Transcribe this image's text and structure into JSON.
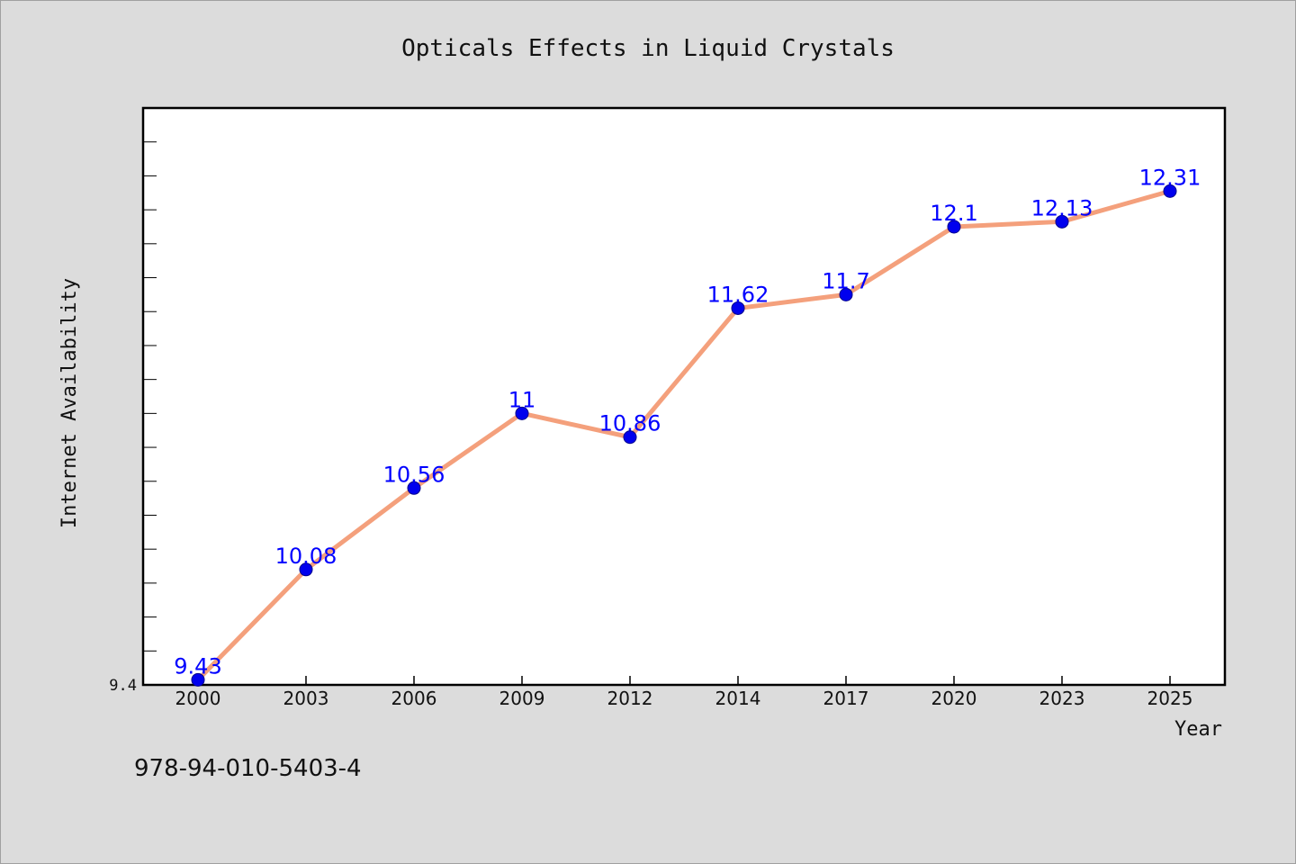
{
  "chart_data": {
    "type": "line",
    "title": "Opticals Effects in Liquid Crystals",
    "xlabel": "Year",
    "ylabel": "Internet Availability",
    "categories": [
      "2000",
      "2003",
      "2006",
      "2009",
      "2012",
      "2014",
      "2017",
      "2020",
      "2023",
      "2025"
    ],
    "series": [
      {
        "values": [
          9.43,
          10.08,
          10.56,
          11,
          10.86,
          11.62,
          11.7,
          12.1,
          12.13,
          12.31
        ],
        "labels": [
          "9.43",
          "10.08",
          "10.56",
          "11",
          "10.86",
          "11.62",
          "11.7",
          "12.1",
          "12.13",
          "12.31"
        ]
      }
    ],
    "y_tick_labels": [
      "9.4"
    ],
    "ylim": [
      9.4,
      12.8
    ],
    "grid": false,
    "legend": "none"
  },
  "footer": {
    "isbn": "978-94-010-5403-4"
  },
  "colors": {
    "line": "#f4a07c",
    "marker": "#0000ee",
    "label": "#0000ff",
    "background": "#dcdcdc",
    "plot_background": "#ffffff"
  }
}
